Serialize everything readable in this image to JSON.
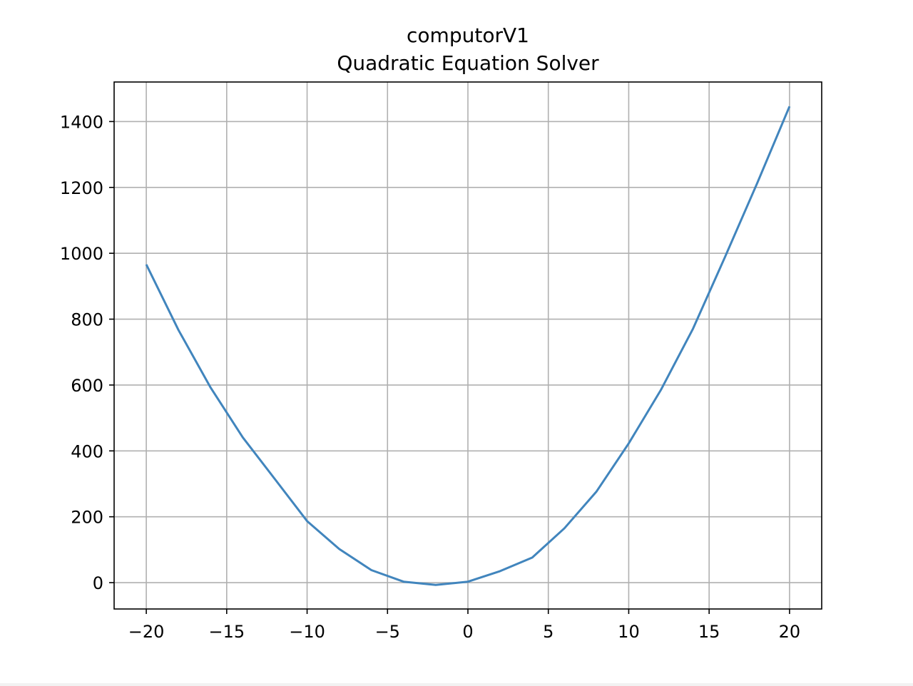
{
  "chart_data": {
    "type": "line",
    "title": "computorV1",
    "subtitle": "Quadratic Equation Solver",
    "xlabel": "",
    "ylabel": "",
    "xlim": [
      -22,
      22
    ],
    "ylim": [
      -80,
      1520
    ],
    "grid": true,
    "x_ticks": [
      -20,
      -15,
      -10,
      -5,
      0,
      5,
      10,
      15,
      20
    ],
    "x_tick_labels": [
      "−20",
      "−15",
      "−10",
      "−5",
      "0",
      "5",
      "10",
      "15",
      "20"
    ],
    "y_ticks": [
      0,
      200,
      400,
      600,
      800,
      1000,
      1200,
      1400
    ],
    "y_tick_labels": [
      "0",
      "200",
      "400",
      "600",
      "800",
      "1000",
      "1200",
      "1400"
    ],
    "series": [
      {
        "color": "#4185bd",
        "x": [
          -20,
          -18,
          -16,
          -14,
          -12,
          -10,
          -8,
          -6,
          -4,
          -2,
          0,
          2,
          4,
          6,
          8,
          10,
          12,
          14,
          16,
          18,
          20
        ],
        "y": [
          966,
          767,
          592,
          441,
          314,
          187,
          102,
          38,
          3,
          -7,
          3,
          35,
          76,
          165,
          277,
          423,
          585,
          771,
          990,
          1214,
          1446
        ]
      }
    ]
  }
}
